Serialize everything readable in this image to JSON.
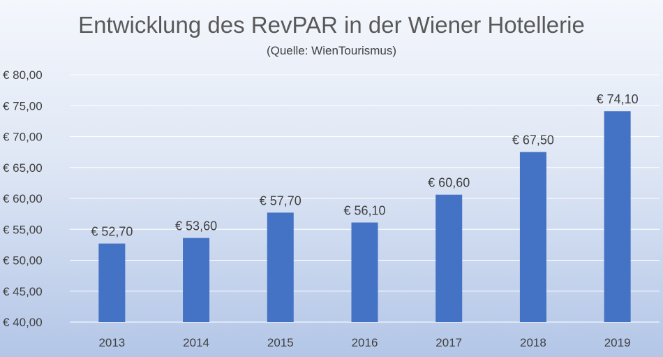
{
  "chart_data": {
    "type": "bar",
    "title": "Entwicklung des RevPAR in der Wiener Hotellerie",
    "subtitle": "(Quelle: WienTourismus)",
    "categories": [
      "2013",
      "2014",
      "2015",
      "2016",
      "2017",
      "2018",
      "2019"
    ],
    "values": [
      52.7,
      53.6,
      57.7,
      56.1,
      60.6,
      67.5,
      74.1
    ],
    "data_labels": [
      "€ 52,70",
      "€ 53,60",
      "€ 57,70",
      "€ 56,10",
      "€ 60,60",
      "€ 67,50",
      "€ 74,10"
    ],
    "ylim": [
      40,
      80
    ],
    "yticks": [
      40,
      45,
      50,
      55,
      60,
      65,
      70,
      75,
      80
    ],
    "ytick_labels": [
      "€ 40,00",
      "€ 45,00",
      "€ 50,00",
      "€ 55,00",
      "€ 60,00",
      "€ 65,00",
      "€ 70,00",
      "€ 75,00",
      "€ 80,00"
    ],
    "xlabel": "",
    "ylabel": "",
    "grid": true,
    "legend": "none",
    "colors": {
      "bar": "#4472c4",
      "gridline": "#ffffff",
      "text": "#404040",
      "title": "#595959"
    }
  }
}
